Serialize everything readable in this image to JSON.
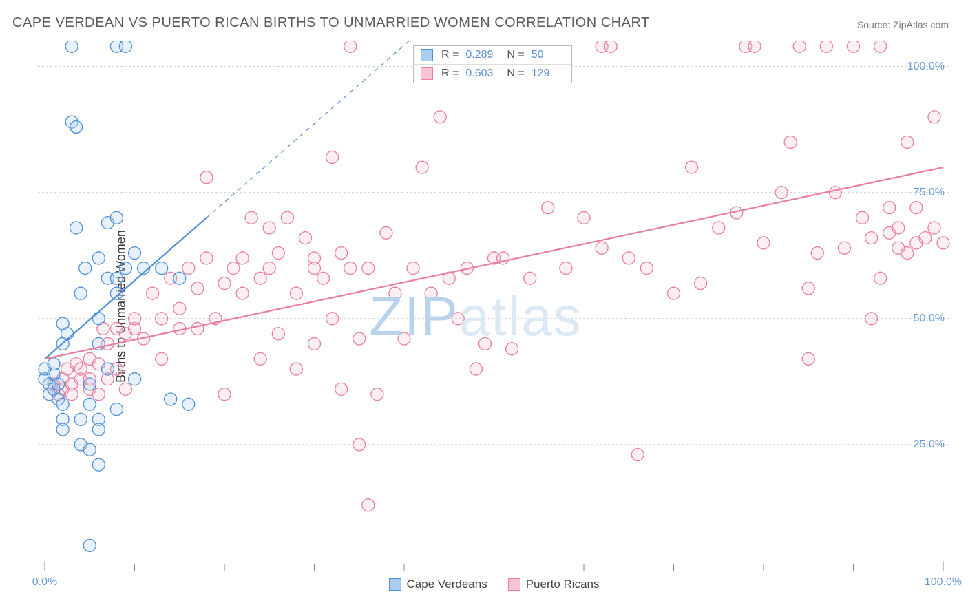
{
  "title": "CAPE VERDEAN VS PUERTO RICAN BIRTHS TO UNMARRIED WOMEN CORRELATION CHART",
  "source_label": "Source: ",
  "source_value": "ZipAtlas.com",
  "y_axis_label": "Births to Unmarried Women",
  "watermark": {
    "text_front": "ZIP",
    "text_back": "atlas",
    "color_front": "#b9d3ec",
    "color_back": "#dce8f4"
  },
  "chart": {
    "type": "scatter",
    "background_color": "#ffffff",
    "grid_color": "#cccccc",
    "axis_color": "#888888",
    "tick_color": "#888888",
    "tick_label_color": "#6a9bd8",
    "xlim": [
      0,
      100
    ],
    "ylim": [
      0,
      105
    ],
    "x_ticks_major": [
      0,
      100
    ],
    "x_ticks_minor": [
      10,
      20,
      30,
      40,
      50,
      60,
      70,
      80,
      90
    ],
    "y_ticks": [
      25,
      50,
      75,
      100
    ],
    "x_tick_labels": {
      "0": "0.0%",
      "100": "100.0%"
    },
    "y_tick_labels": {
      "25": "25.0%",
      "50": "50.0%",
      "75": "75.0%",
      "100": "100.0%"
    },
    "marker_radius": 9,
    "marker_stroke_width": 1.3,
    "marker_fill_opacity": 0.28,
    "trend_line_width": 2.2,
    "trend_dash_width": 1.2,
    "series": [
      {
        "name": "Cape Verdeans",
        "color_stroke": "#4f8fd6",
        "color_fill": "#a8cdef",
        "R": "0.289",
        "N": "50",
        "trend": {
          "x1": 0,
          "y1": 42,
          "x2": 18,
          "y2": 70
        },
        "trend_dash": {
          "x1": 18,
          "y1": 70,
          "x2": 40.5,
          "y2": 105
        },
        "points": [
          [
            0,
            38
          ],
          [
            0,
            40
          ],
          [
            0.5,
            37
          ],
          [
            0.5,
            35
          ],
          [
            1,
            36
          ],
          [
            1,
            39
          ],
          [
            1,
            41
          ],
          [
            1.5,
            34
          ],
          [
            1.5,
            37
          ],
          [
            2,
            33
          ],
          [
            2,
            30
          ],
          [
            2,
            28
          ],
          [
            2,
            45
          ],
          [
            2,
            49
          ],
          [
            2.5,
            47
          ],
          [
            3,
            104
          ],
          [
            3,
            89
          ],
          [
            3.5,
            68
          ],
          [
            3.5,
            88
          ],
          [
            4,
            55
          ],
          [
            4,
            30
          ],
          [
            4,
            25
          ],
          [
            4.5,
            60
          ],
          [
            5,
            37
          ],
          [
            5,
            33
          ],
          [
            5,
            24
          ],
          [
            5,
            5
          ],
          [
            6,
            62
          ],
          [
            6,
            50
          ],
          [
            6,
            45
          ],
          [
            6,
            30
          ],
          [
            6,
            28
          ],
          [
            6,
            21
          ],
          [
            7,
            69
          ],
          [
            7,
            58
          ],
          [
            7,
            40
          ],
          [
            8,
            104
          ],
          [
            8,
            70
          ],
          [
            8,
            58
          ],
          [
            8,
            55
          ],
          [
            8,
            32
          ],
          [
            9,
            104
          ],
          [
            9,
            60
          ],
          [
            10,
            63
          ],
          [
            10,
            38
          ],
          [
            11,
            60
          ],
          [
            13,
            60
          ],
          [
            14,
            34
          ],
          [
            15,
            58
          ],
          [
            16,
            33
          ]
        ]
      },
      {
        "name": "Puerto Ricans",
        "color_stroke": "#e87da0",
        "color_fill": "#f6c4d3",
        "R": "0.603",
        "N": "129",
        "trend": {
          "x1": 0,
          "y1": 42,
          "x2": 100,
          "y2": 80
        },
        "trend_dash": null,
        "points": [
          [
            1,
            36
          ],
          [
            1,
            37
          ],
          [
            1.5,
            35
          ],
          [
            2,
            38
          ],
          [
            2,
            36
          ],
          [
            2.5,
            40
          ],
          [
            3,
            37
          ],
          [
            3,
            35
          ],
          [
            3.5,
            41
          ],
          [
            4,
            38
          ],
          [
            4,
            40
          ],
          [
            5,
            42
          ],
          [
            5,
            36
          ],
          [
            5,
            38
          ],
          [
            6,
            41
          ],
          [
            6,
            35
          ],
          [
            6.5,
            48
          ],
          [
            7,
            38
          ],
          [
            7,
            45
          ],
          [
            8,
            40
          ],
          [
            8,
            48
          ],
          [
            9,
            47
          ],
          [
            9,
            36
          ],
          [
            10,
            48
          ],
          [
            10,
            50
          ],
          [
            11,
            46
          ],
          [
            12,
            55
          ],
          [
            13,
            50
          ],
          [
            13,
            42
          ],
          [
            14,
            58
          ],
          [
            15,
            52
          ],
          [
            15,
            48
          ],
          [
            16,
            60
          ],
          [
            17,
            56
          ],
          [
            17,
            48
          ],
          [
            18,
            62
          ],
          [
            18,
            78
          ],
          [
            19,
            50
          ],
          [
            20,
            57
          ],
          [
            20,
            35
          ],
          [
            21,
            60
          ],
          [
            22,
            55
          ],
          [
            22,
            62
          ],
          [
            23,
            70
          ],
          [
            24,
            58
          ],
          [
            24,
            42
          ],
          [
            25,
            60
          ],
          [
            25,
            68
          ],
          [
            26,
            63
          ],
          [
            26,
            47
          ],
          [
            27,
            70
          ],
          [
            28,
            55
          ],
          [
            28,
            40
          ],
          [
            29,
            66
          ],
          [
            30,
            62
          ],
          [
            30,
            60
          ],
          [
            30,
            45
          ],
          [
            31,
            58
          ],
          [
            32,
            50
          ],
          [
            32,
            82
          ],
          [
            33,
            63
          ],
          [
            33,
            36
          ],
          [
            34,
            60
          ],
          [
            34,
            104
          ],
          [
            35,
            46
          ],
          [
            35,
            25
          ],
          [
            36,
            60
          ],
          [
            36,
            13
          ],
          [
            37,
            35
          ],
          [
            38,
            67
          ],
          [
            39,
            55
          ],
          [
            40,
            46
          ],
          [
            41,
            60
          ],
          [
            42,
            80
          ],
          [
            43,
            55
          ],
          [
            44,
            90
          ],
          [
            45,
            58
          ],
          [
            46,
            50
          ],
          [
            47,
            60
          ],
          [
            48,
            40
          ],
          [
            49,
            45
          ],
          [
            50,
            62
          ],
          [
            51,
            62
          ],
          [
            52,
            44
          ],
          [
            54,
            58
          ],
          [
            56,
            72
          ],
          [
            58,
            60
          ],
          [
            60,
            70
          ],
          [
            62,
            64
          ],
          [
            62,
            104
          ],
          [
            63,
            104
          ],
          [
            65,
            62
          ],
          [
            66,
            23
          ],
          [
            67,
            60
          ],
          [
            70,
            55
          ],
          [
            72,
            80
          ],
          [
            73,
            57
          ],
          [
            75,
            68
          ],
          [
            77,
            71
          ],
          [
            78,
            104
          ],
          [
            79,
            104
          ],
          [
            80,
            65
          ],
          [
            82,
            75
          ],
          [
            83,
            85
          ],
          [
            84,
            104
          ],
          [
            85,
            56
          ],
          [
            85,
            42
          ],
          [
            86,
            63
          ],
          [
            87,
            104
          ],
          [
            88,
            75
          ],
          [
            89,
            64
          ],
          [
            90,
            104
          ],
          [
            91,
            70
          ],
          [
            92,
            66
          ],
          [
            92,
            50
          ],
          [
            93,
            58
          ],
          [
            93,
            104
          ],
          [
            94,
            67
          ],
          [
            94,
            72
          ],
          [
            95,
            64
          ],
          [
            95,
            68
          ],
          [
            96,
            63
          ],
          [
            96,
            85
          ],
          [
            97,
            65
          ],
          [
            97,
            72
          ],
          [
            98,
            66
          ],
          [
            99,
            68
          ],
          [
            99,
            90
          ],
          [
            100,
            65
          ]
        ]
      }
    ]
  },
  "stats_value_color": "#5b8fd0",
  "legend_text_color": "#444444"
}
